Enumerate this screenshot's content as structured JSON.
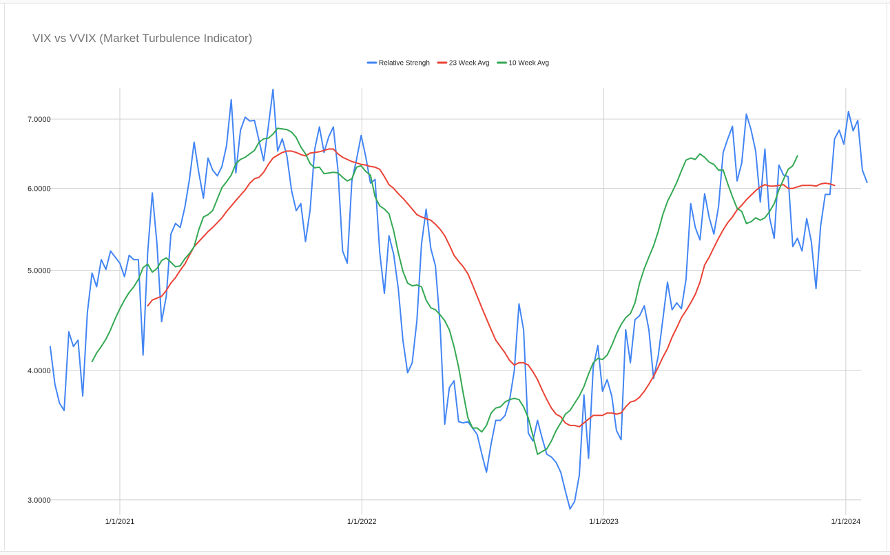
{
  "chart_data": {
    "type": "line",
    "title": "VIX vs VVIX (Market Turbulence Indicator)",
    "xlabel": "",
    "ylabel": "",
    "y_scale": "log",
    "ylim": [
      2.9,
      7.5
    ],
    "yticks": [
      3.0,
      4.0,
      5.0,
      6.0,
      7.0
    ],
    "ytick_labels": [
      "3.0000",
      "4.0000",
      "5.0000",
      "6.0000",
      "7.0000"
    ],
    "xlim": [
      "2020-09-16",
      "2024-01-24"
    ],
    "xticks": [
      "2021-01-01",
      "2022-01-01",
      "2023-01-01",
      "2024-01-01"
    ],
    "xtick_labels": [
      "1/1/2021",
      "1/1/2022",
      "1/1/2023",
      "1/1/2024"
    ],
    "grid": true,
    "legend_position": "top",
    "series": [
      {
        "name": "Relative Strengh",
        "color": "#4285f4",
        "start": "2020-09-18",
        "step_days": 7,
        "values": [
          4.22,
          3.88,
          3.72,
          3.66,
          4.36,
          4.22,
          4.28,
          3.78,
          4.55,
          4.97,
          4.82,
          5.12,
          5.01,
          5.22,
          5.15,
          5.08,
          4.93,
          5.17,
          5.12,
          5.12,
          4.14,
          5.2,
          5.94,
          5.3,
          4.46,
          4.72,
          5.42,
          5.55,
          5.5,
          5.75,
          6.12,
          6.65,
          6.22,
          5.87,
          6.42,
          6.25,
          6.17,
          6.3,
          6.6,
          7.31,
          6.21,
          6.83,
          7.03,
          6.97,
          6.98,
          6.67,
          6.38,
          6.89,
          7.48,
          6.52,
          6.7,
          6.45,
          5.97,
          5.71,
          5.8,
          5.33,
          5.72,
          6.55,
          6.88,
          6.5,
          6.73,
          6.88,
          6.25,
          5.22,
          5.08,
          6.1,
          6.4,
          6.75,
          6.43,
          6.07,
          6.12,
          5.2,
          4.75,
          5.4,
          5.18,
          4.8,
          4.28,
          3.98,
          4.07,
          4.47,
          5.3,
          5.73,
          5.25,
          5.05,
          4.44,
          3.55,
          3.85,
          3.91,
          3.57,
          3.56,
          3.57,
          3.52,
          3.47,
          3.32,
          3.19,
          3.4,
          3.58,
          3.58,
          3.62,
          3.75,
          4.0,
          4.64,
          4.38,
          3.48,
          3.42,
          3.58,
          3.44,
          3.32,
          3.3,
          3.26,
          3.19,
          3.06,
          2.94,
          2.99,
          3.17,
          3.79,
          3.29,
          4.03,
          4.23,
          3.82,
          3.92,
          3.78,
          3.5,
          3.43,
          4.38,
          4.07,
          4.48,
          4.52,
          4.62,
          4.38,
          3.93,
          4.13,
          4.48,
          4.87,
          4.58,
          4.65,
          4.59,
          4.9,
          5.8,
          5.5,
          5.35,
          5.93,
          5.62,
          5.42,
          5.76,
          6.5,
          6.7,
          6.89,
          6.1,
          6.35,
          7.08,
          6.84,
          6.52,
          5.82,
          6.55,
          5.62,
          5.37,
          6.32,
          6.18,
          6.16,
          5.27,
          5.37,
          5.22,
          5.61,
          5.33,
          4.8,
          5.52,
          5.92,
          5.92,
          6.7,
          6.83,
          6.62,
          7.12,
          6.82,
          6.98,
          6.25,
          6.08
        ]
      },
      {
        "name": "23 Week Avg",
        "color": "#ea4335",
        "start": "2021-02-12",
        "step_days": 7,
        "values": [
          4.62,
          4.68,
          4.7,
          4.72,
          4.78,
          4.86,
          4.92,
          5.0,
          5.07,
          5.17,
          5.27,
          5.33,
          5.39,
          5.45,
          5.5,
          5.56,
          5.62,
          5.7,
          5.77,
          5.84,
          5.91,
          5.98,
          6.07,
          6.13,
          6.15,
          6.22,
          6.33,
          6.42,
          6.46,
          6.5,
          6.52,
          6.52,
          6.5,
          6.47,
          6.45,
          6.49,
          6.5,
          6.51,
          6.53,
          6.55,
          6.55,
          6.48,
          6.43,
          6.4,
          6.37,
          6.35,
          6.33,
          6.32,
          6.3,
          6.29,
          6.26,
          6.16,
          6.05,
          6.0,
          5.93,
          5.87,
          5.8,
          5.73,
          5.66,
          5.63,
          5.61,
          5.59,
          5.54,
          5.48,
          5.4,
          5.29,
          5.17,
          5.1,
          5.04,
          4.96,
          4.84,
          4.72,
          4.6,
          4.49,
          4.38,
          4.28,
          4.22,
          4.16,
          4.09,
          4.05,
          4.07,
          4.07,
          4.05,
          3.99,
          3.92,
          3.83,
          3.75,
          3.68,
          3.63,
          3.61,
          3.56,
          3.54,
          3.54,
          3.53,
          3.56,
          3.59,
          3.62,
          3.62,
          3.62,
          3.64,
          3.64,
          3.63,
          3.64,
          3.69,
          3.73,
          3.74,
          3.77,
          3.82,
          3.88,
          3.95,
          4.03,
          4.12,
          4.2,
          4.31,
          4.4,
          4.5,
          4.57,
          4.65,
          4.74,
          4.87,
          5.06,
          5.15,
          5.26,
          5.37,
          5.47,
          5.56,
          5.63,
          5.72,
          5.78,
          5.85,
          5.91,
          5.97,
          6.02,
          6.05,
          6.03,
          6.03,
          6.04,
          6.05,
          6.0,
          6.0,
          6.02,
          6.04,
          6.04,
          6.04,
          6.03,
          6.06,
          6.07,
          6.06,
          6.04
        ]
      },
      {
        "name": "10 Week Avg",
        "color": "#34a853",
        "start": "2020-11-20",
        "step_days": 7,
        "values": [
          4.08,
          4.16,
          4.22,
          4.29,
          4.38,
          4.49,
          4.59,
          4.68,
          4.76,
          4.82,
          4.9,
          5.03,
          5.07,
          4.98,
          5.02,
          5.11,
          5.14,
          5.09,
          5.04,
          5.05,
          5.13,
          5.19,
          5.27,
          5.47,
          5.63,
          5.66,
          5.71,
          5.86,
          6.01,
          6.09,
          6.18,
          6.34,
          6.4,
          6.43,
          6.48,
          6.53,
          6.65,
          6.7,
          6.71,
          6.77,
          6.86,
          6.85,
          6.84,
          6.8,
          6.72,
          6.58,
          6.48,
          6.34,
          6.28,
          6.29,
          6.2,
          6.21,
          6.22,
          6.21,
          6.15,
          6.1,
          6.13,
          6.29,
          6.31,
          6.23,
          6.18,
          5.89,
          5.77,
          5.73,
          5.67,
          5.46,
          5.2,
          4.99,
          4.86,
          4.83,
          4.84,
          4.82,
          4.68,
          4.6,
          4.58,
          4.53,
          4.47,
          4.38,
          4.22,
          4.03,
          3.8,
          3.6,
          3.52,
          3.52,
          3.49,
          3.54,
          3.64,
          3.68,
          3.69,
          3.73,
          3.75,
          3.76,
          3.75,
          3.69,
          3.6,
          3.46,
          3.32,
          3.34,
          3.36,
          3.42,
          3.5,
          3.56,
          3.63,
          3.66,
          3.72,
          3.78,
          3.86,
          3.97,
          4.07,
          4.11,
          4.1,
          4.14,
          4.23,
          4.34,
          4.43,
          4.5,
          4.54,
          4.65,
          4.86,
          5.02,
          5.15,
          5.28,
          5.45,
          5.66,
          5.83,
          5.95,
          6.08,
          6.24,
          6.39,
          6.42,
          6.4,
          6.48,
          6.43,
          6.36,
          6.33,
          6.25,
          6.25,
          6.06,
          5.89,
          5.74,
          5.7,
          5.55,
          5.57,
          5.62,
          5.59,
          5.62,
          5.7,
          5.8,
          5.98,
          6.12,
          6.26,
          6.31,
          6.45
        ]
      }
    ]
  }
}
